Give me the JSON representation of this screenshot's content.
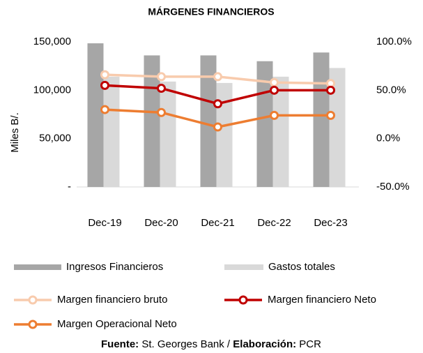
{
  "chart_data": {
    "type": "bar_line",
    "title": "MÁRGENES FINANCIEROS",
    "y_label": "Miles B/.",
    "categories": [
      "Dec-19",
      "Dec-20",
      "Dec-21",
      "Dec-22",
      "Dec-23"
    ],
    "ylim": [
      0,
      150000
    ],
    "yticks": [
      {
        "value": 0,
        "label": "-"
      },
      {
        "value": 50000,
        "label": "50,000"
      },
      {
        "value": 100000,
        "label": "100,000"
      },
      {
        "value": 150000,
        "label": "150,000"
      }
    ],
    "y2lim": [
      -50,
      100
    ],
    "y2ticks": [
      {
        "value": -50,
        "label": "-50.0%"
      },
      {
        "value": 0,
        "label": "0.0%"
      },
      {
        "value": 50,
        "label": "50.0%"
      },
      {
        "value": 100,
        "label": "100.0%"
      }
    ],
    "series": [
      {
        "name": "Ingresos Financieros",
        "type": "bar",
        "color": "#a6a6a6",
        "values": [
          148500,
          136000,
          136000,
          130000,
          139000
        ]
      },
      {
        "name": "Gastos totales",
        "type": "bar",
        "color": "#d9d9d9",
        "values": [
          114000,
          109000,
          107500,
          114000,
          123000
        ]
      },
      {
        "name": "Margen financiero bruto",
        "type": "line",
        "axis": "y2",
        "color": "#f8cbad",
        "values": [
          66,
          64,
          64,
          58,
          57
        ]
      },
      {
        "name": "Margen financiero Neto",
        "type": "line",
        "axis": "y2",
        "color": "#c00000",
        "values": [
          55,
          52,
          36,
          50,
          50
        ]
      },
      {
        "name": "Margen Operacional Neto",
        "type": "line",
        "axis": "y2",
        "color": "#ed7d31",
        "values": [
          30,
          27,
          12,
          24,
          24
        ]
      }
    ],
    "source_label": "Fuente:",
    "source": "St. Georges Bank /",
    "elaboration_label": "Elaboración:",
    "elaboration": "PCR"
  }
}
